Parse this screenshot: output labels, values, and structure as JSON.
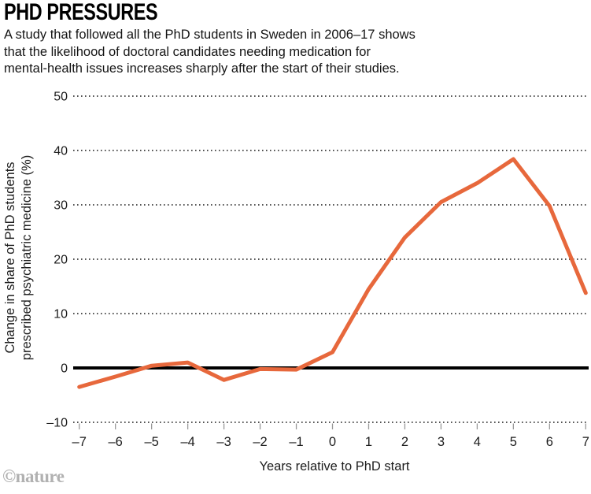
{
  "header": {
    "title": "PHD PRESSURES",
    "subtitle_lines": [
      "A study that followed all the PhD students in Sweden in 2006–17 shows",
      "that the likelihood of doctoral candidates needing medication for",
      "mental-health issues increases sharply after the start of their studies."
    ]
  },
  "colors": {
    "line": "#E7683C",
    "grid": "#1A1A1A",
    "zero_line": "#000000",
    "tick": "#999999",
    "text": "#1C1C1C",
    "credit": "#B1B1B1"
  },
  "chart_data": {
    "type": "line",
    "title": "PHD PRESSURES",
    "xlabel": "Years relative to PhD start",
    "ylabel": "Change in share of PhD students prescribed psychiatric medicine (%)",
    "ylabel_lines": [
      "Change in share of PhD students",
      "prescribed psychiatric medicine (%)"
    ],
    "x": [
      -7,
      -6,
      -5,
      -4,
      -3,
      -2,
      -1,
      0,
      1,
      2,
      3,
      4,
      5,
      6,
      7
    ],
    "values": [
      -3.5,
      -1.6,
      0.4,
      1.0,
      -2.2,
      -0.2,
      -0.3,
      2.9,
      14.5,
      24,
      30.5,
      34,
      38.4,
      29.8,
      13.8
    ],
    "xticks": [
      {
        "value": -7,
        "label": "–7"
      },
      {
        "value": -6,
        "label": "–6"
      },
      {
        "value": -5,
        "label": "–5"
      },
      {
        "value": -4,
        "label": "–4"
      },
      {
        "value": -3,
        "label": "–3"
      },
      {
        "value": -2,
        "label": "–2"
      },
      {
        "value": -1,
        "label": "–1"
      },
      {
        "value": 0,
        "label": "0"
      },
      {
        "value": 1,
        "label": "1"
      },
      {
        "value": 2,
        "label": "2"
      },
      {
        "value": 3,
        "label": "3"
      },
      {
        "value": 4,
        "label": "4"
      },
      {
        "value": 5,
        "label": "5"
      },
      {
        "value": 6,
        "label": "6"
      },
      {
        "value": 7,
        "label": "7"
      }
    ],
    "yticks": [
      {
        "value": 50,
        "label": "50"
      },
      {
        "value": 40,
        "label": "40"
      },
      {
        "value": 30,
        "label": "30"
      },
      {
        "value": 20,
        "label": "20"
      },
      {
        "value": 10,
        "label": "10"
      },
      {
        "value": 0,
        "label": "0"
      },
      {
        "value": -10,
        "label": "–10"
      }
    ],
    "xlim": [
      -7,
      7
    ],
    "ylim": [
      -10,
      50
    ],
    "grid": "horizontal-dotted",
    "zero_baseline_bold": true,
    "legend": null,
    "line_color": "#E7683C"
  },
  "footer": {
    "credit": "©nature"
  }
}
